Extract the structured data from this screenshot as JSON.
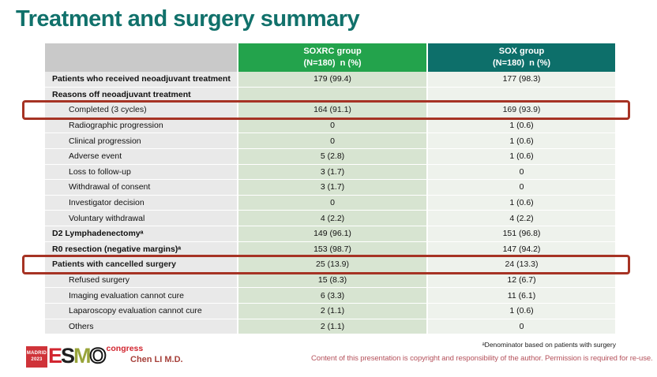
{
  "slide": {
    "title": "Treatment and surgery summary"
  },
  "colors": {
    "title": "#11716b",
    "soxrc_header_green": "#23a34c",
    "sox_header_teal": "#0d6f6a",
    "highlight_red": "#a63324",
    "copyright_pink": "#b5525c",
    "soxrc_cell_green": "#d7e4d1",
    "sox_cell_green": "#eef2ec",
    "label_cell_gray": "#e9e9e9"
  },
  "table": {
    "columns": [
      {
        "label": "",
        "sublabel": ""
      },
      {
        "label": "SOXRC group",
        "sublabel": "(N=180)  n (%)"
      },
      {
        "label": "SOX group",
        "sublabel": "(N=180)  n (%)"
      }
    ],
    "rows": [
      {
        "label": "Patients who received neoadjuvant treatment",
        "soxrc": "179 (99.4)",
        "sox": "177 (98.3)",
        "bold": true,
        "indent": false,
        "highlight": false
      },
      {
        "label": "Reasons off neoadjuvant treatment",
        "soxrc": "",
        "sox": "",
        "bold": true,
        "indent": false,
        "highlight": false
      },
      {
        "label": "Completed (3 cycles)",
        "soxrc": "164 (91.1)",
        "sox": "169 (93.9)",
        "bold": false,
        "indent": true,
        "highlight": true
      },
      {
        "label": "Radiographic progression",
        "soxrc": "0",
        "sox": "1 (0.6)",
        "bold": false,
        "indent": true,
        "highlight": false
      },
      {
        "label": "Clinical progression",
        "soxrc": "0",
        "sox": "1 (0.6)",
        "bold": false,
        "indent": true,
        "highlight": false
      },
      {
        "label": "Adverse event",
        "soxrc": "5 (2.8)",
        "sox": "1 (0.6)",
        "bold": false,
        "indent": true,
        "highlight": false
      },
      {
        "label": "Loss to follow-up",
        "soxrc": "3 (1.7)",
        "sox": "0",
        "bold": false,
        "indent": true,
        "highlight": false
      },
      {
        "label": "Withdrawal of consent",
        "soxrc": "3 (1.7)",
        "sox": "0",
        "bold": false,
        "indent": true,
        "highlight": false
      },
      {
        "label": "Investigator decision",
        "soxrc": "0",
        "sox": "1 (0.6)",
        "bold": false,
        "indent": true,
        "highlight": false
      },
      {
        "label": "Voluntary withdrawal",
        "soxrc": "4 (2.2)",
        "sox": "4 (2.2)",
        "bold": false,
        "indent": true,
        "highlight": false
      },
      {
        "label": "D2 Lymphadenectomyᵃ",
        "soxrc": "149 (96.1)",
        "sox": "151 (96.8)",
        "bold": true,
        "indent": false,
        "highlight": false
      },
      {
        "label": "R0 resection (negative margins)ᵃ",
        "soxrc": "153 (98.7)",
        "sox": "147 (94.2)",
        "bold": true,
        "indent": false,
        "highlight": false
      },
      {
        "label": "Patients with cancelled surgery",
        "soxrc": "25 (13.9)",
        "sox": "24 (13.3)",
        "bold": true,
        "indent": false,
        "highlight": true
      },
      {
        "label": "Refused surgery",
        "soxrc": "15 (8.3)",
        "sox": "12 (6.7)",
        "bold": false,
        "indent": true,
        "highlight": false
      },
      {
        "label": "Imaging evaluation cannot cure",
        "soxrc": "6 (3.3)",
        "sox": "11 (6.1)",
        "bold": false,
        "indent": true,
        "highlight": false
      },
      {
        "label": "Laparoscopy evaluation cannot cure",
        "soxrc": "2 (1.1)",
        "sox": "1 (0.6)",
        "bold": false,
        "indent": true,
        "highlight": false
      },
      {
        "label": "Others",
        "soxrc": "2 (1.1)",
        "sox": "0",
        "bold": false,
        "indent": true,
        "highlight": false
      }
    ]
  },
  "footer": {
    "logo": {
      "madrid": "MADRID",
      "year": "2023",
      "letter_e": "E",
      "letter_s": "S",
      "letter_m": "M",
      "letter_o": "O",
      "congress": "congress"
    },
    "author": "Chen LI M.D.",
    "footnote": "ᵃDenominator based on patients with surgery",
    "copyright": "Content of this presentation is copyright and responsibility of the author. Permission is required for re-use."
  }
}
